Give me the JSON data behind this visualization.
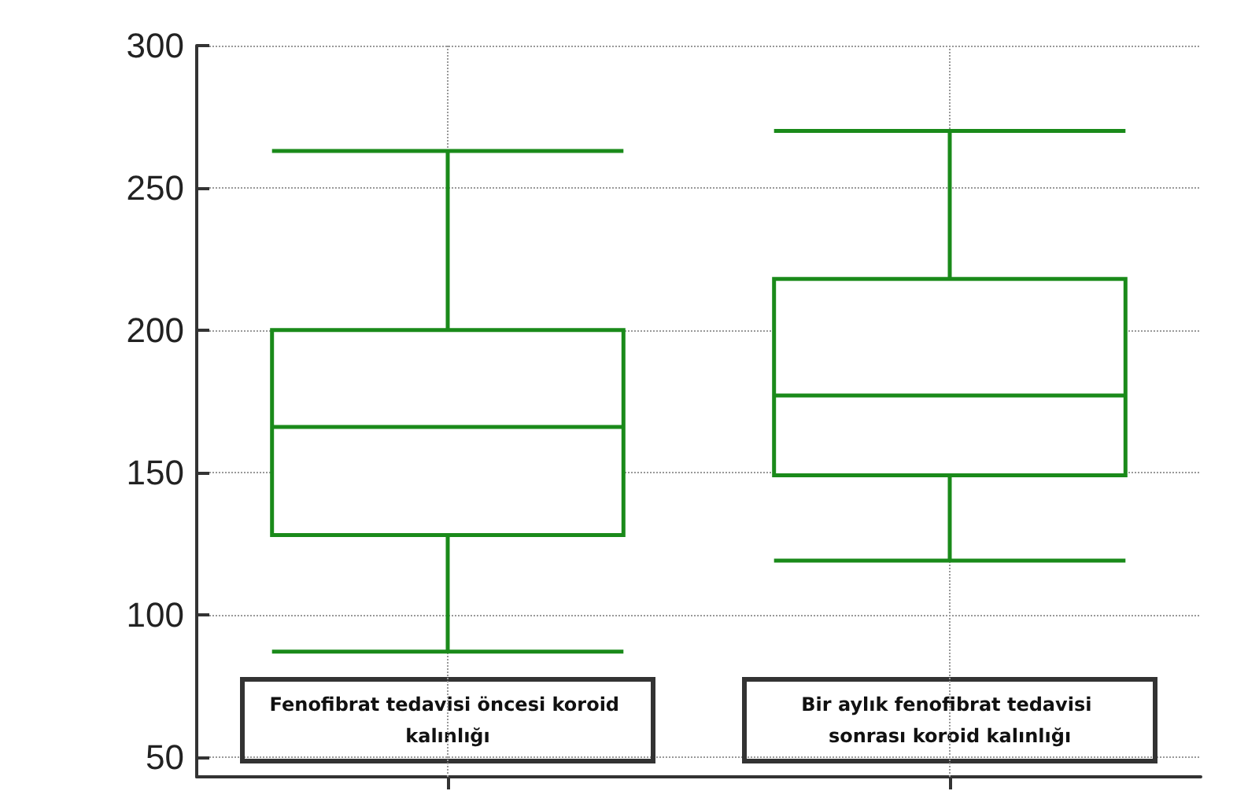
{
  "chart_data": {
    "type": "box",
    "categories": [
      "Fenofibrat tedavisi öncesi koroid kalınlığı",
      "Bir aylık fenofibrat tedavisi sonrası koroid kalınlığı"
    ],
    "series": [
      {
        "color": "#1a8a1a",
        "boxes": [
          {
            "low": 87,
            "q1": 128,
            "median": 166,
            "q3": 200,
            "high": 263
          },
          {
            "low": 119,
            "q1": 149,
            "median": 177,
            "q3": 218,
            "high": 270
          }
        ]
      }
    ],
    "ylim": [
      43,
      300
    ],
    "yticks": [
      50,
      100,
      150,
      200,
      250,
      300
    ],
    "grid": true
  }
}
